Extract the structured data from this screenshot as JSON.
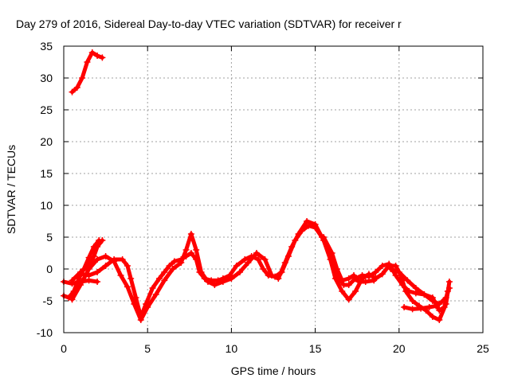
{
  "chart_data": {
    "type": "scatter",
    "title": "Day 279 of 2016, Sidereal Day-to-day VTEC variation (SDTVAR) for receiver r",
    "xlabel": "GPS time / hours",
    "ylabel": "SDTVAR / TECUs",
    "xlim": [
      0,
      25
    ],
    "ylim": [
      -10,
      35
    ],
    "x_ticks": [
      "0",
      "5",
      "10",
      "15",
      "20",
      "25"
    ],
    "y_ticks": [
      "-10",
      "-5",
      "0",
      "5",
      "10",
      "15",
      "20",
      "25",
      "30",
      "35"
    ],
    "grid": true,
    "marker": "+",
    "color": "#ff0000",
    "series": [
      {
        "values": [
          [
            0.5,
            27.8
          ],
          [
            0.8,
            28.5
          ],
          [
            1.1,
            30.0
          ],
          [
            1.4,
            32.5
          ],
          [
            1.7,
            34.0
          ],
          [
            2.0,
            33.5
          ],
          [
            2.3,
            33.2
          ]
        ]
      },
      {
        "values": [
          [
            0.0,
            -4.2
          ],
          [
            0.3,
            -4.5
          ],
          [
            0.6,
            -3.5
          ],
          [
            0.9,
            -1.5
          ],
          [
            1.2,
            0.0
          ],
          [
            1.5,
            1.8
          ],
          [
            1.8,
            3.5
          ],
          [
            2.1,
            4.5
          ]
        ]
      },
      {
        "values": [
          [
            0.0,
            -2.0
          ],
          [
            0.5,
            -2.3
          ],
          [
            1.0,
            -2.0
          ],
          [
            1.5,
            -1.8
          ],
          [
            2.0,
            -2.0
          ]
        ]
      },
      {
        "values": [
          [
            0.5,
            -1.8
          ],
          [
            1.0,
            -0.5
          ],
          [
            1.5,
            0.5
          ],
          [
            1.8,
            2.0
          ],
          [
            2.0,
            3.5
          ],
          [
            2.3,
            4.5
          ]
        ]
      },
      {
        "values": [
          [
            1.0,
            -0.8
          ],
          [
            1.5,
            -1.0
          ],
          [
            2.0,
            -0.5
          ],
          [
            2.5,
            0.5
          ],
          [
            3.0,
            1.5
          ],
          [
            3.5,
            1.5
          ],
          [
            3.8,
            0.5
          ],
          [
            4.0,
            -1.5
          ],
          [
            4.3,
            -4.5
          ],
          [
            4.6,
            -7.5
          ],
          [
            4.9,
            -5.5
          ],
          [
            5.3,
            -3.0
          ],
          [
            5.7,
            -1.5
          ],
          [
            6.0,
            -0.5
          ],
          [
            6.3,
            0.5
          ],
          [
            6.6,
            1.2
          ],
          [
            7.0,
            1.5
          ],
          [
            7.3,
            2.0
          ],
          [
            7.6,
            2.5
          ],
          [
            7.9,
            1.5
          ],
          [
            8.1,
            -0.5
          ],
          [
            8.4,
            -1.5
          ],
          [
            8.8,
            -1.8
          ],
          [
            9.2,
            -1.8
          ],
          [
            9.5,
            -1.5
          ],
          [
            9.9,
            -1.0
          ],
          [
            10.3,
            0.5
          ],
          [
            10.8,
            1.5
          ],
          [
            11.2,
            2.0
          ],
          [
            11.6,
            1.5
          ],
          [
            11.9,
            0.0
          ],
          [
            12.2,
            -1.0
          ],
          [
            12.6,
            -1.2
          ],
          [
            13.0,
            -0.5
          ],
          [
            13.4,
            2.0
          ],
          [
            13.8,
            4.5
          ],
          [
            14.2,
            6.0
          ],
          [
            14.6,
            6.8
          ],
          [
            15.0,
            6.5
          ],
          [
            15.4,
            5.0
          ],
          [
            15.8,
            3.0
          ],
          [
            16.1,
            0.5
          ],
          [
            16.4,
            -1.5
          ],
          [
            16.7,
            -2.5
          ],
          [
            17.0,
            -2.5
          ],
          [
            17.4,
            -1.5
          ],
          [
            17.8,
            -1.0
          ],
          [
            18.2,
            -1.2
          ],
          [
            18.6,
            -0.5
          ],
          [
            19.0,
            0.5
          ],
          [
            19.4,
            0.8
          ],
          [
            19.8,
            -1.0
          ],
          [
            20.2,
            -2.5
          ],
          [
            20.6,
            -3.5
          ],
          [
            21.0,
            -3.8
          ],
          [
            21.5,
            -4.0
          ],
          [
            22.0,
            -4.5
          ],
          [
            22.4,
            -6.5
          ],
          [
            22.7,
            -6.0
          ],
          [
            22.9,
            -3.5
          ]
        ]
      },
      {
        "values": [
          [
            0.5,
            -4.8
          ],
          [
            1.0,
            -2.5
          ],
          [
            1.5,
            0.0
          ],
          [
            2.0,
            1.5
          ],
          [
            2.5,
            2.0
          ],
          [
            3.0,
            1.2
          ],
          [
            3.4,
            -1.0
          ],
          [
            3.8,
            -2.8
          ],
          [
            4.2,
            -5.5
          ],
          [
            4.6,
            -8.0
          ],
          [
            5.0,
            -6.0
          ],
          [
            5.5,
            -4.0
          ],
          [
            6.0,
            -1.8
          ],
          [
            6.5,
            0.0
          ],
          [
            7.0,
            1.0
          ],
          [
            7.3,
            3.0
          ],
          [
            7.6,
            5.5
          ],
          [
            7.9,
            3.0
          ],
          [
            8.2,
            -0.5
          ],
          [
            8.6,
            -2.0
          ],
          [
            9.0,
            -2.5
          ],
          [
            9.5,
            -2.0
          ],
          [
            10.0,
            -1.5
          ],
          [
            10.5,
            -0.5
          ],
          [
            11.0,
            1.0
          ],
          [
            11.5,
            2.5
          ],
          [
            12.0,
            1.5
          ],
          [
            12.4,
            -1.0
          ],
          [
            12.8,
            -1.5
          ],
          [
            13.2,
            1.0
          ],
          [
            13.6,
            3.5
          ],
          [
            14.0,
            5.5
          ],
          [
            14.5,
            7.5
          ],
          [
            15.0,
            7.0
          ],
          [
            15.5,
            4.5
          ],
          [
            15.9,
            1.5
          ],
          [
            16.2,
            -1.5
          ],
          [
            16.6,
            -3.5
          ],
          [
            17.0,
            -4.8
          ],
          [
            17.4,
            -3.5
          ],
          [
            17.8,
            -1.5
          ],
          [
            18.2,
            -0.8
          ],
          [
            18.6,
            -1.5
          ],
          [
            19.0,
            -0.8
          ],
          [
            19.4,
            0.5
          ],
          [
            19.8,
            0.5
          ],
          [
            20.1,
            -1.0
          ],
          [
            20.4,
            -3.5
          ],
          [
            20.8,
            -5.0
          ],
          [
            21.2,
            -5.8
          ],
          [
            21.6,
            -6.5
          ],
          [
            22.0,
            -7.5
          ],
          [
            22.4,
            -8.0
          ],
          [
            22.8,
            -5.5
          ],
          [
            23.0,
            -2.0
          ]
        ]
      },
      {
        "values": [
          [
            15.5,
            5.0
          ],
          [
            16.0,
            2.5
          ],
          [
            16.3,
            0.0
          ],
          [
            16.6,
            -1.8
          ],
          [
            17.0,
            -1.5
          ],
          [
            17.3,
            -1.0
          ],
          [
            17.6,
            -2.0
          ],
          [
            18.0,
            -2.0
          ],
          [
            18.5,
            -1.8
          ]
        ]
      },
      {
        "values": [
          [
            19.5,
            0.0
          ],
          [
            20.0,
            -0.5
          ],
          [
            20.5,
            -1.8
          ],
          [
            21.0,
            -3.0
          ],
          [
            21.5,
            -4.0
          ],
          [
            22.0,
            -5.0
          ],
          [
            22.4,
            -5.5
          ],
          [
            22.8,
            -4.5
          ],
          [
            23.0,
            -3.0
          ]
        ]
      },
      {
        "values": [
          [
            20.3,
            -6.0
          ],
          [
            20.8,
            -6.3
          ],
          [
            21.3,
            -6.2
          ],
          [
            21.8,
            -6.0
          ],
          [
            22.2,
            -5.8
          ]
        ]
      }
    ]
  }
}
